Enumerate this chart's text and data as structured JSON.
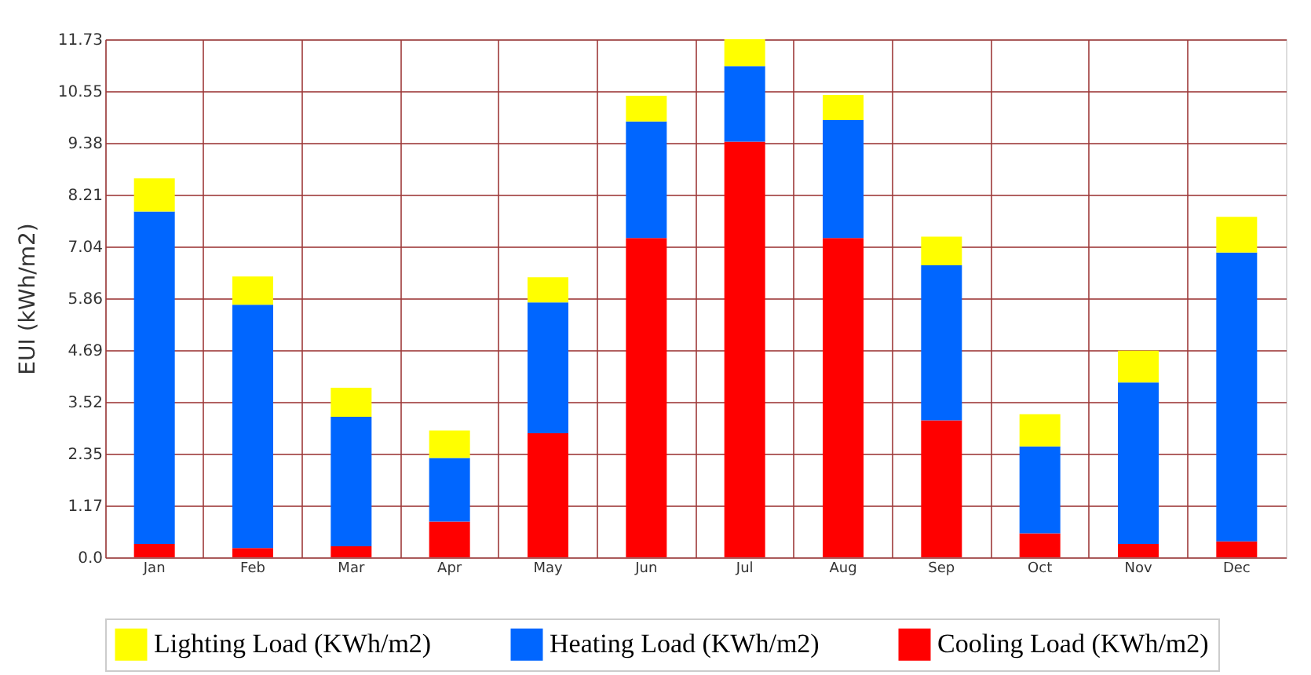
{
  "chart_data": {
    "type": "bar",
    "stacked": true,
    "ylabel": "EUI (kWh/m2)",
    "categories": [
      "Jan",
      "Feb",
      "Mar",
      "Apr",
      "May",
      "Jun",
      "Jul",
      "Aug",
      "Sep",
      "Oct",
      "Nov",
      "Dec"
    ],
    "series": [
      {
        "name": "Cooling Load (KWh/m2)",
        "color": "#ff0000",
        "values": [
          0.3,
          0.21,
          0.25,
          0.81,
          2.81,
          7.23,
          9.41,
          7.23,
          3.1,
          0.54,
          0.3,
          0.36
        ]
      },
      {
        "name": "Heating Load (KWh/m2)",
        "color": "#0066ff",
        "values": [
          7.53,
          5.51,
          2.93,
          1.44,
          2.96,
          2.64,
          1.71,
          2.67,
          3.51,
          1.97,
          3.66,
          6.54
        ]
      },
      {
        "name": "Lighting Load (KWh/m2)",
        "color": "#ffff00",
        "values": [
          0.75,
          0.64,
          0.66,
          0.62,
          0.57,
          0.58,
          0.61,
          0.57,
          0.65,
          0.73,
          0.72,
          0.81
        ]
      }
    ],
    "ylim": [
      0,
      11.73
    ],
    "yticks": [
      {
        "value": 0,
        "label": "0.0"
      },
      1.17,
      2.35,
      3.52,
      4.69,
      5.86,
      7.04,
      8.21,
      9.38,
      10.55,
      11.73
    ],
    "grid": true,
    "legend": "bottom"
  }
}
